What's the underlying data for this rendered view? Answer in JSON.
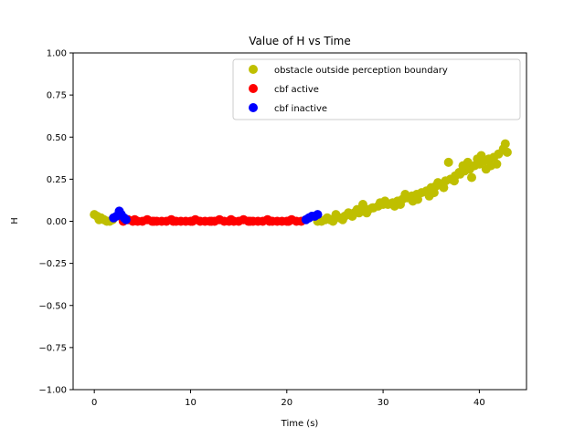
{
  "chart_data": {
    "type": "scatter",
    "title": "Value of H vs Time",
    "xlabel": "Time (s)",
    "ylabel": "H",
    "xlim": [
      -2.2,
      44.9
    ],
    "ylim": [
      -1.0,
      1.0
    ],
    "x_ticks": [
      0,
      10,
      20,
      30,
      40
    ],
    "x_tick_labels": [
      "0",
      "10",
      "20",
      "30",
      "40"
    ],
    "y_ticks": [
      -1.0,
      -0.75,
      -0.5,
      -0.25,
      0.0,
      0.25,
      0.5,
      0.75,
      1.0
    ],
    "y_tick_labels": [
      "−1.00",
      "−0.75",
      "−0.50",
      "−0.25",
      "0.00",
      "0.25",
      "0.50",
      "0.75",
      "1.00"
    ],
    "grid": false,
    "legend_position": "top-right",
    "series": [
      {
        "name": "obstacle outside perception boundary",
        "color": "#bfbf00",
        "points": [
          [
            0.0,
            0.04
          ],
          [
            0.3,
            0.03
          ],
          [
            0.5,
            0.01
          ],
          [
            0.7,
            0.02
          ],
          [
            1.0,
            0.01
          ],
          [
            1.3,
            0.0
          ],
          [
            1.6,
            0.0
          ],
          [
            1.9,
            0.01
          ],
          [
            23.2,
            0.0
          ],
          [
            23.6,
            0.0
          ],
          [
            24.0,
            0.01
          ],
          [
            24.5,
            0.01
          ],
          [
            25.0,
            0.02
          ],
          [
            25.5,
            0.02
          ],
          [
            26.0,
            0.03
          ],
          [
            26.5,
            0.04
          ],
          [
            27.0,
            0.05
          ],
          [
            27.5,
            0.05
          ],
          [
            28.0,
            0.06
          ],
          [
            28.5,
            0.07
          ],
          [
            29.0,
            0.08
          ],
          [
            29.5,
            0.09
          ],
          [
            30.0,
            0.1
          ],
          [
            30.5,
            0.1
          ],
          [
            31.0,
            0.11
          ],
          [
            31.5,
            0.12
          ],
          [
            32.0,
            0.13
          ],
          [
            32.5,
            0.14
          ],
          [
            33.0,
            0.15
          ],
          [
            33.5,
            0.16
          ],
          [
            34.0,
            0.17
          ],
          [
            34.5,
            0.18
          ],
          [
            35.0,
            0.2
          ],
          [
            35.5,
            0.21
          ],
          [
            36.0,
            0.22
          ],
          [
            36.5,
            0.24
          ],
          [
            37.0,
            0.25
          ],
          [
            37.5,
            0.27
          ],
          [
            38.0,
            0.28
          ],
          [
            38.5,
            0.3
          ],
          [
            39.0,
            0.31
          ],
          [
            39.5,
            0.33
          ],
          [
            40.0,
            0.34
          ],
          [
            40.5,
            0.36
          ],
          [
            41.0,
            0.37
          ],
          [
            41.5,
            0.38
          ],
          [
            42.0,
            0.4
          ],
          [
            42.5,
            0.43
          ],
          [
            42.7,
            0.46
          ],
          [
            36.8,
            0.35
          ],
          [
            38.3,
            0.33
          ],
          [
            40.2,
            0.39
          ],
          [
            41.8,
            0.34
          ],
          [
            39.2,
            0.26
          ],
          [
            37.4,
            0.24
          ],
          [
            35.3,
            0.17
          ],
          [
            33.6,
            0.13
          ],
          [
            31.8,
            0.1
          ],
          [
            30.2,
            0.12
          ],
          [
            28.9,
            0.08
          ],
          [
            27.9,
            0.1
          ],
          [
            26.4,
            0.05
          ],
          [
            25.1,
            0.04
          ],
          [
            24.2,
            0.02
          ],
          [
            42.9,
            0.41
          ],
          [
            41.2,
            0.33
          ],
          [
            40.7,
            0.31
          ],
          [
            39.8,
            0.37
          ],
          [
            38.8,
            0.35
          ],
          [
            37.9,
            0.29
          ],
          [
            36.3,
            0.2
          ],
          [
            35.7,
            0.23
          ],
          [
            34.8,
            0.15
          ],
          [
            33.1,
            0.12
          ],
          [
            32.3,
            0.16
          ],
          [
            31.2,
            0.09
          ],
          [
            29.7,
            0.11
          ],
          [
            28.3,
            0.05
          ],
          [
            27.3,
            0.07
          ],
          [
            26.8,
            0.03
          ],
          [
            25.8,
            0.01
          ],
          [
            24.8,
            0.0
          ]
        ]
      },
      {
        "name": "cbf active",
        "color": "#ff0000",
        "points": [
          [
            3.0,
            0.0
          ],
          [
            3.5,
            0.01
          ],
          [
            4.0,
            0.0
          ],
          [
            4.5,
            0.0
          ],
          [
            5.0,
            0.0
          ],
          [
            5.5,
            0.01
          ],
          [
            6.0,
            0.0
          ],
          [
            6.5,
            0.0
          ],
          [
            7.0,
            0.0
          ],
          [
            7.5,
            0.0
          ],
          [
            8.0,
            0.01
          ],
          [
            8.5,
            0.0
          ],
          [
            9.0,
            0.0
          ],
          [
            9.5,
            0.0
          ],
          [
            10.0,
            0.0
          ],
          [
            10.5,
            0.01
          ],
          [
            11.0,
            0.0
          ],
          [
            11.5,
            0.0
          ],
          [
            12.0,
            0.0
          ],
          [
            12.5,
            0.0
          ],
          [
            13.0,
            0.01
          ],
          [
            13.5,
            0.0
          ],
          [
            14.0,
            0.0
          ],
          [
            14.5,
            0.0
          ],
          [
            15.0,
            0.0
          ],
          [
            15.5,
            0.01
          ],
          [
            16.0,
            0.0
          ],
          [
            16.5,
            0.0
          ],
          [
            17.0,
            0.0
          ],
          [
            17.5,
            0.0
          ],
          [
            18.0,
            0.01
          ],
          [
            18.5,
            0.0
          ],
          [
            19.0,
            0.0
          ],
          [
            19.5,
            0.0
          ],
          [
            20.0,
            0.0
          ],
          [
            20.5,
            0.01
          ],
          [
            21.0,
            0.0
          ],
          [
            21.5,
            0.0
          ],
          [
            4.2,
            0.01
          ],
          [
            6.2,
            0.0
          ],
          [
            8.2,
            0.0
          ],
          [
            10.2,
            0.0
          ],
          [
            12.2,
            0.0
          ],
          [
            14.2,
            0.01
          ],
          [
            16.2,
            0.0
          ],
          [
            18.2,
            0.0
          ],
          [
            20.2,
            0.0
          ]
        ]
      },
      {
        "name": "cbf inactive",
        "color": "#0000ff",
        "points": [
          [
            2.0,
            0.02
          ],
          [
            2.3,
            0.03
          ],
          [
            2.6,
            0.06
          ],
          [
            2.8,
            0.04
          ],
          [
            3.1,
            0.02
          ],
          [
            3.3,
            0.01
          ],
          [
            22.0,
            0.01
          ],
          [
            22.3,
            0.02
          ],
          [
            22.6,
            0.03
          ],
          [
            22.9,
            0.03
          ],
          [
            23.2,
            0.04
          ]
        ]
      }
    ]
  }
}
